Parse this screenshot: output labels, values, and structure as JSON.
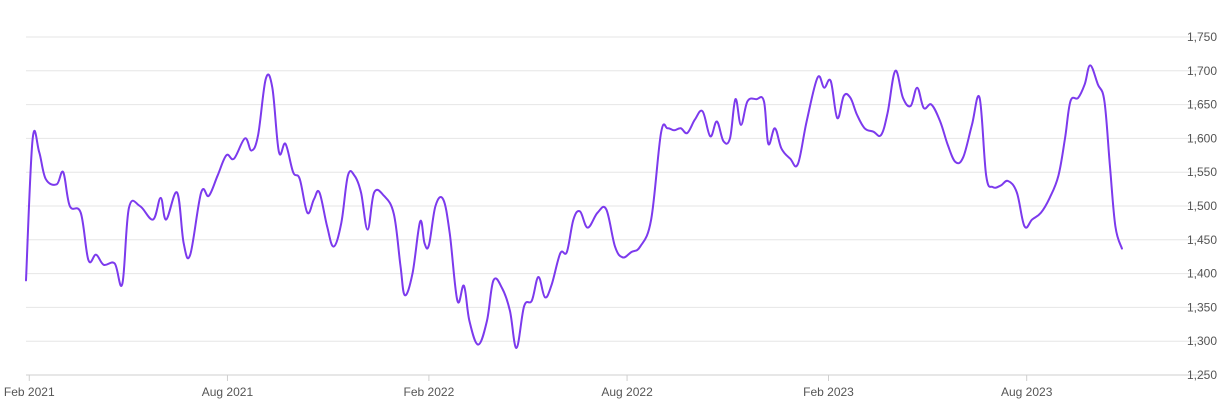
{
  "chart_data": {
    "type": "line",
    "title": "",
    "xlabel": "",
    "ylabel": "",
    "ylim": [
      1250,
      1750
    ],
    "yticks": [
      1250,
      1300,
      1350,
      1400,
      1450,
      1500,
      1550,
      1600,
      1650,
      1700,
      1750
    ],
    "ytick_labels": [
      "1,250",
      "1,300",
      "1,350",
      "1,400",
      "1,450",
      "1,500",
      "1,550",
      "1,600",
      "1,650",
      "1,700",
      "1,750"
    ],
    "xlim": [
      "2021-01-29",
      "2023-12-30"
    ],
    "xticks": [
      "2021-02-01",
      "2021-08-01",
      "2022-02-01",
      "2022-08-01",
      "2023-02-01",
      "2023-08-01"
    ],
    "xtick_labels": [
      "Feb 2021",
      "Aug 2021",
      "Feb 2022",
      "Aug 2022",
      "Feb 2023",
      "Aug 2023"
    ],
    "grid": true,
    "y_axis_position": "right",
    "legend": "none",
    "series": [
      {
        "color": "#7c3aed",
        "points": [
          [
            "2021-01-29",
            1390
          ],
          [
            "2021-02-04",
            1598
          ],
          [
            "2021-02-10",
            1580
          ],
          [
            "2021-02-16",
            1540
          ],
          [
            "2021-02-26",
            1532
          ],
          [
            "2021-03-04",
            1550
          ],
          [
            "2021-03-10",
            1500
          ],
          [
            "2021-03-20",
            1490
          ],
          [
            "2021-03-27",
            1420
          ],
          [
            "2021-04-03",
            1428
          ],
          [
            "2021-04-10",
            1413
          ],
          [
            "2021-04-20",
            1415
          ],
          [
            "2021-04-27",
            1385
          ],
          [
            "2021-05-03",
            1497
          ],
          [
            "2021-05-13",
            1500
          ],
          [
            "2021-05-25",
            1480
          ],
          [
            "2021-06-01",
            1512
          ],
          [
            "2021-06-06",
            1480
          ],
          [
            "2021-06-16",
            1520
          ],
          [
            "2021-06-22",
            1445
          ],
          [
            "2021-06-28",
            1428
          ],
          [
            "2021-07-08",
            1520
          ],
          [
            "2021-07-15",
            1515
          ],
          [
            "2021-07-23",
            1545
          ],
          [
            "2021-07-31",
            1575
          ],
          [
            "2021-08-07",
            1570
          ],
          [
            "2021-08-17",
            1600
          ],
          [
            "2021-08-23",
            1582
          ],
          [
            "2021-08-29",
            1605
          ],
          [
            "2021-09-05",
            1688
          ],
          [
            "2021-09-11",
            1675
          ],
          [
            "2021-09-17",
            1580
          ],
          [
            "2021-09-23",
            1592
          ],
          [
            "2021-09-30",
            1550
          ],
          [
            "2021-10-06",
            1540
          ],
          [
            "2021-10-13",
            1490
          ],
          [
            "2021-10-19",
            1510
          ],
          [
            "2021-10-24",
            1520
          ],
          [
            "2021-10-31",
            1470
          ],
          [
            "2021-11-06",
            1440
          ],
          [
            "2021-11-13",
            1475
          ],
          [
            "2021-11-19",
            1545
          ],
          [
            "2021-11-25",
            1545
          ],
          [
            "2021-12-01",
            1520
          ],
          [
            "2021-12-07",
            1465
          ],
          [
            "2021-12-13",
            1520
          ],
          [
            "2021-12-22",
            1515
          ],
          [
            "2021-12-31",
            1488
          ],
          [
            "2022-01-06",
            1412
          ],
          [
            "2022-01-10",
            1368
          ],
          [
            "2022-01-17",
            1400
          ],
          [
            "2022-01-24",
            1477
          ],
          [
            "2022-01-28",
            1445
          ],
          [
            "2022-02-01",
            1442
          ],
          [
            "2022-02-07",
            1500
          ],
          [
            "2022-02-14",
            1510
          ],
          [
            "2022-02-20",
            1460
          ],
          [
            "2022-02-27",
            1360
          ],
          [
            "2022-03-05",
            1382
          ],
          [
            "2022-03-10",
            1330
          ],
          [
            "2022-03-18",
            1295
          ],
          [
            "2022-03-26",
            1330
          ],
          [
            "2022-04-01",
            1390
          ],
          [
            "2022-04-09",
            1378
          ],
          [
            "2022-04-16",
            1345
          ],
          [
            "2022-04-22",
            1290
          ],
          [
            "2022-04-29",
            1352
          ],
          [
            "2022-05-06",
            1360
          ],
          [
            "2022-05-12",
            1395
          ],
          [
            "2022-05-18",
            1365
          ],
          [
            "2022-05-24",
            1383
          ],
          [
            "2022-06-01",
            1430
          ],
          [
            "2022-06-07",
            1432
          ],
          [
            "2022-06-13",
            1480
          ],
          [
            "2022-06-19",
            1492
          ],
          [
            "2022-06-26",
            1468
          ],
          [
            "2022-07-05",
            1490
          ],
          [
            "2022-07-13",
            1495
          ],
          [
            "2022-07-21",
            1440
          ],
          [
            "2022-07-28",
            1424
          ],
          [
            "2022-08-05",
            1432
          ],
          [
            "2022-08-13",
            1440
          ],
          [
            "2022-08-23",
            1480
          ],
          [
            "2022-09-01",
            1608
          ],
          [
            "2022-09-07",
            1615
          ],
          [
            "2022-09-13",
            1612
          ],
          [
            "2022-09-19",
            1615
          ],
          [
            "2022-09-25",
            1608
          ],
          [
            "2022-10-02",
            1628
          ],
          [
            "2022-10-09",
            1640
          ],
          [
            "2022-10-16",
            1603
          ],
          [
            "2022-10-22",
            1625
          ],
          [
            "2022-10-28",
            1596
          ],
          [
            "2022-11-03",
            1600
          ],
          [
            "2022-11-08",
            1658
          ],
          [
            "2022-11-13",
            1620
          ],
          [
            "2022-11-19",
            1655
          ],
          [
            "2022-11-27",
            1658
          ],
          [
            "2022-12-04",
            1655
          ],
          [
            "2022-12-08",
            1592
          ],
          [
            "2022-12-14",
            1615
          ],
          [
            "2022-12-20",
            1585
          ],
          [
            "2022-12-28",
            1570
          ],
          [
            "2023-01-04",
            1562
          ],
          [
            "2023-01-12",
            1625
          ],
          [
            "2023-01-22",
            1690
          ],
          [
            "2023-01-28",
            1675
          ],
          [
            "2023-02-03",
            1685
          ],
          [
            "2023-02-09",
            1630
          ],
          [
            "2023-02-15",
            1663
          ],
          [
            "2023-02-21",
            1660
          ],
          [
            "2023-02-27",
            1635
          ],
          [
            "2023-03-06",
            1615
          ],
          [
            "2023-03-14",
            1610
          ],
          [
            "2023-03-21",
            1605
          ],
          [
            "2023-03-27",
            1638
          ],
          [
            "2023-04-03",
            1700
          ],
          [
            "2023-04-10",
            1660
          ],
          [
            "2023-04-17",
            1648
          ],
          [
            "2023-04-23",
            1675
          ],
          [
            "2023-04-29",
            1645
          ],
          [
            "2023-05-06",
            1650
          ],
          [
            "2023-05-14",
            1625
          ],
          [
            "2023-05-21",
            1590
          ],
          [
            "2023-05-28",
            1565
          ],
          [
            "2023-06-04",
            1572
          ],
          [
            "2023-06-12",
            1620
          ],
          [
            "2023-06-19",
            1660
          ],
          [
            "2023-06-25",
            1545
          ],
          [
            "2023-07-01",
            1528
          ],
          [
            "2023-07-08",
            1530
          ],
          [
            "2023-07-15",
            1537
          ],
          [
            "2023-07-23",
            1520
          ],
          [
            "2023-07-30",
            1470
          ],
          [
            "2023-08-06",
            1480
          ],
          [
            "2023-08-14",
            1490
          ],
          [
            "2023-08-22",
            1512
          ],
          [
            "2023-08-30",
            1545
          ],
          [
            "2023-09-05",
            1600
          ],
          [
            "2023-09-10",
            1655
          ],
          [
            "2023-09-17",
            1660
          ],
          [
            "2023-09-23",
            1680
          ],
          [
            "2023-09-28",
            1708
          ],
          [
            "2023-10-05",
            1680
          ],
          [
            "2023-10-11",
            1655
          ],
          [
            "2023-10-16",
            1560
          ],
          [
            "2023-10-21",
            1470
          ],
          [
            "2023-10-27",
            1437
          ]
        ]
      }
    ]
  }
}
